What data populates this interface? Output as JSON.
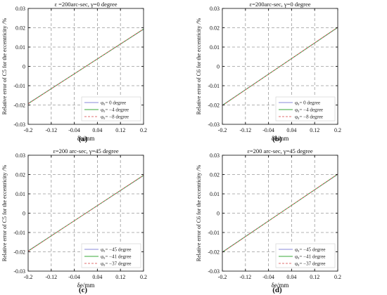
{
  "chart_data": [
    {
      "panel": "(a)",
      "type": "line",
      "title": "ε =200arc-sec, γ=0 degree",
      "xlabel": "δe/mm",
      "ylabel": "Relative error of C5 for the eccentricity /%",
      "xlim": [
        -0.2,
        0.2
      ],
      "ylim": [
        -0.03,
        0.03
      ],
      "xticks": [
        "-0.2",
        "-0.12",
        "-0.04",
        "0.04",
        "0.12",
        "0.2"
      ],
      "yticks": [
        "-0.03",
        "-0.02",
        "-0.01",
        "0",
        "0.01",
        "0.02",
        "0.03"
      ],
      "grid": true,
      "legend_position": "bottom-right",
      "series": [
        {
          "name": "φ₀= 0 degree",
          "color": "#8a8ad8",
          "dash": "solid",
          "x": [
            -0.2,
            0.2
          ],
          "y": [
            -0.0192,
            0.0192
          ]
        },
        {
          "name": "φ₀= −4 degree",
          "color": "#3aa83a",
          "dash": "solid",
          "x": [
            -0.2,
            0.2
          ],
          "y": [
            -0.0193,
            0.0193
          ]
        },
        {
          "name": "φ₀= −8 degree",
          "color": "#e07070",
          "dash": "dashed",
          "x": [
            -0.2,
            0.2
          ],
          "y": [
            -0.0194,
            0.0194
          ]
        }
      ]
    },
    {
      "panel": "(b)",
      "type": "line",
      "title": "ε=200arc-sec, γ=0 degree",
      "xlabel": "δe/mm",
      "ylabel": "Relative error of C6 for the eccentricity /%",
      "xlim": [
        -0.2,
        0.2
      ],
      "ylim": [
        -0.03,
        0.03
      ],
      "xticks": [
        "-0.2",
        "-0.12",
        "-0.04",
        "0.04",
        "0.12",
        "0.2"
      ],
      "yticks": [
        "-0.03",
        "-0.02",
        "-0.01",
        "0",
        "0.01",
        "0.02",
        "0.03"
      ],
      "grid": true,
      "legend_position": "bottom-right",
      "series": [
        {
          "name": "φ₀= 0 degree",
          "color": "#8a8ad8",
          "dash": "solid",
          "x": [
            -0.2,
            0.2
          ],
          "y": [
            -0.0201,
            0.0201
          ]
        },
        {
          "name": "φ₀= −4 degree",
          "color": "#3aa83a",
          "dash": "solid",
          "x": [
            -0.2,
            0.2
          ],
          "y": [
            -0.0202,
            0.0202
          ]
        },
        {
          "name": "φ₀= −8 degree",
          "color": "#e07070",
          "dash": "dashed",
          "x": [
            -0.2,
            0.2
          ],
          "y": [
            -0.0203,
            0.0203
          ]
        }
      ]
    },
    {
      "panel": "(c)",
      "type": "line",
      "title": "ε=200 arc-sec, γ=45 degree",
      "xlabel": "δe/mm",
      "ylabel": "Relative error of C5 for the eccentricity /%",
      "xlim": [
        -0.2,
        0.2
      ],
      "ylim": [
        -0.03,
        0.03
      ],
      "xticks": [
        "-0.2",
        "-0.12",
        "-0.04",
        "0.04",
        "0.12",
        "0.2"
      ],
      "yticks": [
        "-0.03",
        "-0.02",
        "-0.01",
        "0",
        "0.01",
        "0.02",
        "0.03"
      ],
      "grid": true,
      "legend_position": "bottom-right",
      "series": [
        {
          "name": "φ₀= −45 degree",
          "color": "#8a8ad8",
          "dash": "solid",
          "x": [
            -0.2,
            0.2
          ],
          "y": [
            -0.0195,
            0.0195
          ]
        },
        {
          "name": "φ₀= −41 degree",
          "color": "#3aa83a",
          "dash": "solid",
          "x": [
            -0.2,
            0.2
          ],
          "y": [
            -0.0196,
            0.0196
          ]
        },
        {
          "name": "φ₀= −37 degree",
          "color": "#e07070",
          "dash": "dashed",
          "x": [
            -0.2,
            0.2
          ],
          "y": [
            -0.0197,
            0.0197
          ]
        }
      ]
    },
    {
      "panel": "(d)",
      "type": "line",
      "title": "ε=200 arc-sec, γ=45 degree",
      "xlabel": "δe/mm",
      "ylabel": "Relative error of C6 for the eccentricity /%",
      "xlim": [
        -0.2,
        0.2
      ],
      "ylim": [
        -0.03,
        0.03
      ],
      "xticks": [
        "-0.2",
        "-0.12",
        "-0.04",
        "0.04",
        "0.12",
        "0.2"
      ],
      "yticks": [
        "-0.03",
        "-0.02",
        "-0.01",
        "0",
        "0.01",
        "0.02",
        "0.03"
      ],
      "grid": true,
      "legend_position": "bottom-right",
      "series": [
        {
          "name": "φ₀= −45 degree",
          "color": "#8a8ad8",
          "dash": "solid",
          "x": [
            -0.2,
            0.2
          ],
          "y": [
            -0.0201,
            0.0201
          ]
        },
        {
          "name": "φ₀= −41 degree",
          "color": "#3aa83a",
          "dash": "solid",
          "x": [
            -0.2,
            0.2
          ],
          "y": [
            -0.0202,
            0.0202
          ]
        },
        {
          "name": "φ₀= −37 degree",
          "color": "#e07070",
          "dash": "dashed",
          "x": [
            -0.2,
            0.2
          ],
          "y": [
            -0.0203,
            0.0203
          ]
        }
      ]
    }
  ]
}
